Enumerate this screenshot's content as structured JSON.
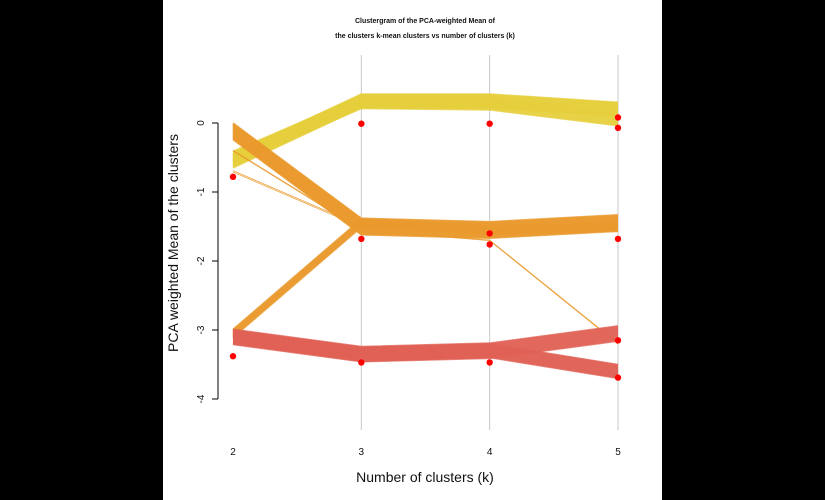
{
  "chart_data": {
    "type": "line",
    "title": "Clustergram of the PCA-weighted Mean of",
    "subtitle": "the clusters k-mean clusters vs number of clusters (k)",
    "xlabel": "Number of clusters (k)",
    "ylabel": "PCA weighted Mean of the clusters",
    "x": [
      2,
      3,
      4,
      5
    ],
    "x_tick_labels": [
      "2",
      "3",
      "4",
      "5"
    ],
    "ylim": [
      -4.0,
      0.4
    ],
    "y_ticks": [
      0,
      -1,
      -2,
      -3,
      -4
    ],
    "y_tick_labels": [
      "0",
      "-1",
      "-2",
      "-3",
      "-4"
    ],
    "grid": "vertical",
    "colors": {
      "yellow_band": "#e6cf3c",
      "orange_band": "#ea9a2e",
      "red_band": "#e06155",
      "cluster_mean": "#ff0000",
      "gridline": "#c8c8c8"
    },
    "bands": [
      {
        "color": "#e6cf3c",
        "paths": [
          {
            "values": [
              -0.55,
              0.32,
              0.32,
              0.2
            ],
            "spread": 0.2,
            "lines": 26
          },
          {
            "values": [
              -0.5,
              0.3,
              0.28,
              0.05
            ],
            "spread": 0.18,
            "lines": 18
          }
        ]
      },
      {
        "color": "#ea9a2e",
        "paths": [
          {
            "values": [
              -0.12,
              -1.5,
              -1.55,
              -1.45
            ],
            "spread": 0.24,
            "lines": 30
          },
          {
            "values": [
              -3.05,
              -1.45,
              -1.55,
              -1.5
            ],
            "spread": 0.12,
            "lines": 12
          },
          {
            "values": [
              -0.4,
              -1.55,
              -1.7,
              -3.2
            ],
            "spread": 0.01,
            "lines": 2
          },
          {
            "values": [
              -0.7,
              -1.5,
              -1.6,
              -1.55
            ],
            "spread": 0.02,
            "lines": 2
          }
        ]
      },
      {
        "color": "#e06155",
        "paths": [
          {
            "values": [
              -3.1,
              -3.35,
              -3.3,
              -3.05
            ],
            "spread": 0.22,
            "lines": 24
          },
          {
            "values": [
              -3.1,
              -3.35,
              -3.3,
              -3.6
            ],
            "spread": 0.2,
            "lines": 24
          }
        ]
      }
    ],
    "cluster_means": [
      {
        "x": 2,
        "y": -0.78
      },
      {
        "x": 2,
        "y": -3.38
      },
      {
        "x": 3,
        "y": -0.01
      },
      {
        "x": 3,
        "y": -1.68
      },
      {
        "x": 3,
        "y": -3.47
      },
      {
        "x": 4,
        "y": -0.01
      },
      {
        "x": 4,
        "y": -1.6
      },
      {
        "x": 4,
        "y": -1.76
      },
      {
        "x": 4,
        "y": -3.47
      },
      {
        "x": 5,
        "y": 0.08
      },
      {
        "x": 5,
        "y": -0.07
      },
      {
        "x": 5,
        "y": -1.68
      },
      {
        "x": 5,
        "y": -3.15
      },
      {
        "x": 5,
        "y": -3.69
      }
    ]
  }
}
